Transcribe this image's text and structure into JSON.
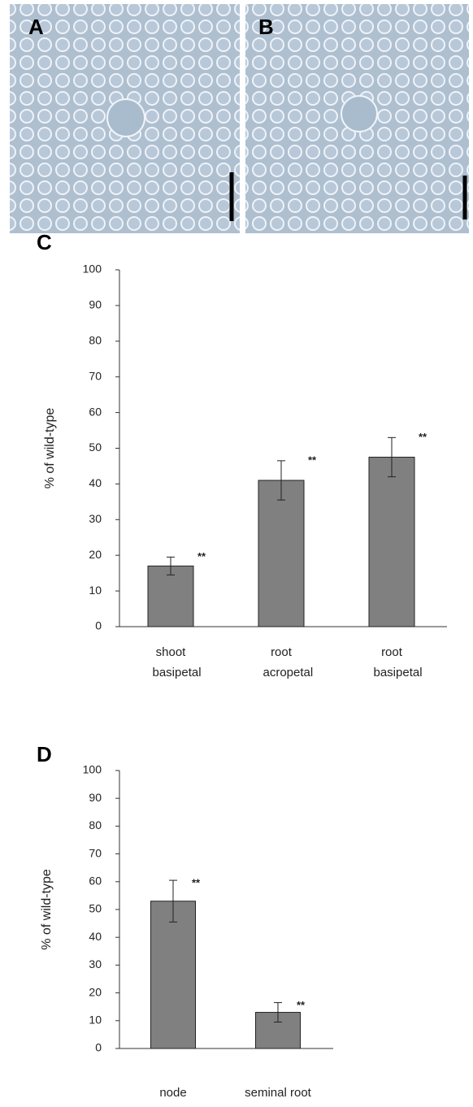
{
  "panels": [
    {
      "label": "A"
    },
    {
      "label": "B"
    }
  ],
  "chart_data": [
    {
      "type": "bar",
      "panel": "C",
      "ylabel": "% of wild-type",
      "categories": [
        "shoot basipetal",
        "root acropetal",
        "root basipetal"
      ],
      "values": [
        17,
        41,
        47.5
      ],
      "errors": [
        2.5,
        5.5,
        5.5
      ],
      "annotations": [
        "**",
        "**",
        "**"
      ],
      "color": "#808080",
      "ylim": [
        0,
        100
      ],
      "yticks": [
        0,
        10,
        20,
        30,
        40,
        50,
        60,
        70,
        80,
        90,
        100
      ]
    },
    {
      "type": "bar",
      "panel": "D",
      "ylabel": "% of wild-type",
      "categories": [
        "node",
        "seminal root"
      ],
      "values": [
        53,
        13
      ],
      "errors": [
        7.5,
        3.5
      ],
      "annotations": [
        "**",
        "**"
      ],
      "color": "#808080",
      "ylim": [
        0,
        100
      ],
      "yticks": [
        0,
        10,
        20,
        30,
        40,
        50,
        60,
        70,
        80,
        90,
        100
      ]
    }
  ]
}
